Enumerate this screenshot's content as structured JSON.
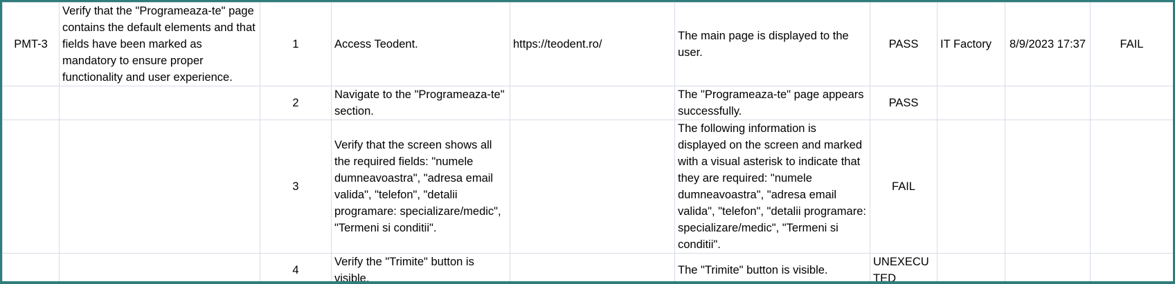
{
  "rows": [
    {
      "test_id": "PMT-3",
      "description": "Verify that the \"Programeaza-te\" page contains the default elements and that fields have been marked as mandatory to ensure proper functionality and user experience.",
      "step": "1",
      "action": "Access Teodent.",
      "test_data": "https://teodent.ro/",
      "expected": "The main page is displayed to the user.",
      "step_status": "PASS",
      "tester": "IT Factory",
      "date": "8/9/2023 17:37",
      "overall": "FAIL"
    },
    {
      "test_id": "",
      "description": "",
      "step": "2",
      "action": "Navigate to the \"Programeaza-te\" section.",
      "test_data": "",
      "expected": "The \"Programeaza-te\" page appears successfully.",
      "step_status": "PASS",
      "tester": "",
      "date": "",
      "overall": ""
    },
    {
      "test_id": "",
      "description": "",
      "step": "3",
      "action": "Verify that the screen shows all the required fields: \"numele dumneavoastra\", \"adresa email valida\", \"telefon\", \"detalii programare: specializare/medic\", \"Termeni si conditii\".",
      "test_data": "",
      "expected": "The following information is displayed on the screen and marked with a visual asterisk to indicate that they are required: \"numele dumneavoastra\", \"adresa email valida\", \"telefon\", \"detalii programare: specializare/medic\", \"Termeni si conditii\".",
      "step_status": "FAIL",
      "tester": "",
      "date": "",
      "overall": ""
    },
    {
      "test_id": "",
      "description": "",
      "step": "4",
      "action": "Verify the \"Trimite\" button is visible.",
      "test_data": "",
      "expected": "The \"Trimite\" button is visible.",
      "step_status": "UNEXECUTED",
      "tester": "",
      "date": "",
      "overall": ""
    }
  ],
  "colors": {
    "frame_border": "#2f7d7b",
    "gridline": "#d6dbe6",
    "text": "#000000"
  }
}
